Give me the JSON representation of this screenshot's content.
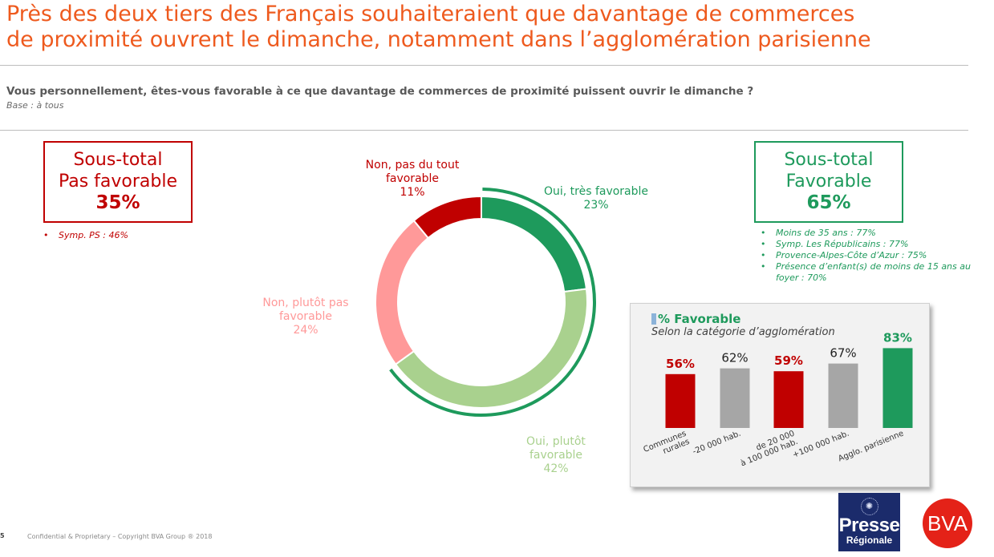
{
  "title": {
    "line1": "Près des deux tiers des Français souhaiteraient que davantage de commerces",
    "line2": "de proximité ouvrent le dimanche, notamment dans l’agglomération parisienne"
  },
  "question": "Vous personnellement, êtes-vous favorable à ce que davantage de commerces de proximité puissent ouvrir le dimanche ?",
  "base": "Base : à tous",
  "subtotal_not_favorable": {
    "line1": "Sous-total",
    "line2": "Pas favorable",
    "value": "35%"
  },
  "subtotal_favorable": {
    "line1": "Sous-total",
    "line2": "Favorable",
    "value": "65%"
  },
  "bullets_not_favorable": [
    "Symp. PS : 46%"
  ],
  "bullets_favorable": [
    "Moins de 35 ans : 77%",
    "Symp. Les Républicains : 77%",
    "Provence-Alpes-Côte d’Azur : 75%",
    "Présence d’enfant(s) de moins de 15 ans au foyer : 70%"
  ],
  "donut_labels": {
    "tres_fav": {
      "line1": "Oui, très favorable",
      "line2": "23%"
    },
    "plutot_fav": {
      "line1": "Oui, plutôt",
      "line2": "favorable",
      "line3": "42%"
    },
    "plutot_pas": {
      "line1": "Non, plutôt pas",
      "line2": "favorable",
      "line3": "24%"
    },
    "pas_du_tout": {
      "line1": "Non, pas du tout",
      "line2": "favorable",
      "line3": "11%"
    }
  },
  "panel": {
    "title": "% Favorable",
    "subtitle": "Selon la catégorie d’agglomération"
  },
  "colors": {
    "title": "#ee5a1e",
    "dark_green": "#1e9a5c",
    "light_green": "#a9d18e",
    "pink": "#ff9999",
    "red": "#c00000",
    "grey": "#a6a6a6"
  },
  "footer": "Confidential & Proprietary – Copyright BVA Group ®  2018",
  "page_number": "5",
  "logos": {
    "presse_line1": "Presse",
    "presse_line2": "Régionale",
    "bva": "BVA"
  },
  "chart_data": [
    {
      "type": "pie",
      "variant": "donut",
      "categories": [
        "Oui, très favorable",
        "Oui, plutôt favorable",
        "Non, plutôt pas favorable",
        "Non, pas du tout favorable"
      ],
      "values": [
        23,
        42,
        24,
        11
      ],
      "unit": "%",
      "colors": [
        "#1e9a5c",
        "#a9d18e",
        "#ff9999",
        "#c00000"
      ]
    },
    {
      "type": "bar",
      "title": "% Favorable",
      "subtitle": "Selon la catégorie d’agglomération",
      "categories": [
        "Communes rurales",
        "-20 000 hab.",
        "de 20 000 à 100 000 hab.",
        "+100 000 hab.",
        "Agglo. parisienne"
      ],
      "category_lines": [
        [
          "Communes",
          "rurales"
        ],
        [
          "-20 000 hab."
        ],
        [
          "de 20 000",
          "à 100 000 hab."
        ],
        [
          "+100 000 hab."
        ],
        [
          "Agglo. parisienne"
        ]
      ],
      "values": [
        56,
        62,
        59,
        67,
        83
      ],
      "labels": [
        "56%",
        "62%",
        "59%",
        "67%",
        "83%"
      ],
      "colors": [
        "#c00000",
        "#a6a6a6",
        "#c00000",
        "#a6a6a6",
        "#1e9a5c"
      ],
      "label_colors": [
        "#c00000",
        "#222222",
        "#c00000",
        "#222222",
        "#1e9a5c"
      ],
      "label_bold": [
        true,
        false,
        true,
        false,
        true
      ],
      "ylim": [
        0,
        100
      ]
    }
  ]
}
